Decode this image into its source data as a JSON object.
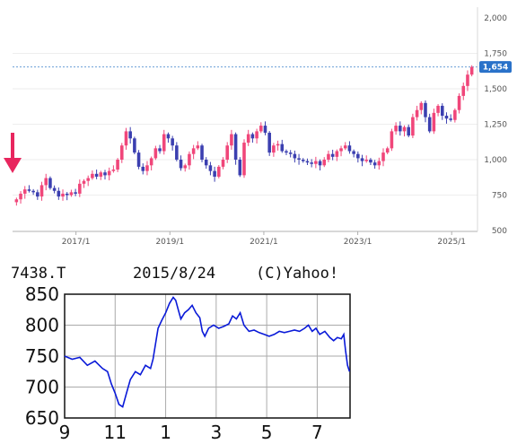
{
  "chart_data": [
    {
      "type": "candlestick",
      "y_axis_ticks": [
        "2,000",
        "1,750",
        "1,500",
        "1,250",
        "1,000",
        "750",
        "500"
      ],
      "y_ticks_values": [
        2000,
        1750,
        1500,
        1250,
        1000,
        750,
        500
      ],
      "ylim": [
        500,
        2000
      ],
      "x_axis_ticks": [
        "2017/1",
        "2019/1",
        "2021/1",
        "2023/1",
        "2025/1"
      ],
      "x_ticks_values": [
        2017.0,
        2019.0,
        2021.0,
        2023.0,
        2025.0
      ],
      "xlim": [
        2015.65,
        2025.55
      ],
      "current_price": "1,654",
      "current_price_value": 1654,
      "colors": {
        "up": "#f0467a",
        "down": "#3b3fb0",
        "price_tag": "#2a72c9",
        "price_line": "#6a9ed6",
        "arrow": "#e8265e",
        "axis": "#b0b0b0"
      },
      "series_close": [
        720,
        760,
        790,
        780,
        770,
        740,
        820,
        870,
        800,
        780,
        740,
        760,
        750,
        770,
        760,
        830,
        850,
        870,
        900,
        880,
        910,
        890,
        920,
        930,
        1000,
        1100,
        1200,
        1150,
        1050,
        950,
        920,
        960,
        1010,
        1080,
        1060,
        1180,
        1150,
        1100,
        1000,
        940,
        960,
        1040,
        1080,
        1100,
        1000,
        960,
        920,
        880,
        950,
        1000,
        1100,
        1180,
        1000,
        890,
        1120,
        1180,
        1150,
        1200,
        1240,
        1190,
        1050,
        1100,
        1110,
        1060,
        1050,
        1040,
        1010,
        1000,
        990,
        980,
        970,
        990,
        960,
        1000,
        1040,
        1020,
        1060,
        1080,
        1100,
        1060,
        1040,
        1010,
        990,
        1000,
        980,
        960,
        990,
        1050,
        1080,
        1200,
        1240,
        1200,
        1230,
        1170,
        1300,
        1350,
        1400,
        1300,
        1200,
        1330,
        1380,
        1310,
        1290,
        1280,
        1350,
        1450,
        1520,
        1600,
        1654
      ]
    },
    {
      "type": "line",
      "ticker": "7438.T",
      "date": "2015/8/24",
      "source": "(C)Yahoo!",
      "y_axis_ticks": [
        "850",
        "800",
        "750",
        "700",
        "650"
      ],
      "y_ticks_values": [
        850,
        800,
        750,
        700,
        650
      ],
      "ylim": [
        650,
        850
      ],
      "x_axis_ticks": [
        "9",
        "11",
        "1",
        "3",
        "5",
        "7"
      ],
      "x_ticks_values": [
        0,
        2,
        4,
        6,
        8,
        10
      ],
      "xlim": [
        0,
        11.3
      ],
      "colors": {
        "line": "#0a1ad8",
        "frame": "#111111",
        "grid": "#aaaaaa"
      },
      "series": [
        {
          "x": 0.0,
          "y": 750
        },
        {
          "x": 0.3,
          "y": 745
        },
        {
          "x": 0.6,
          "y": 748
        },
        {
          "x": 0.9,
          "y": 735
        },
        {
          "x": 1.2,
          "y": 742
        },
        {
          "x": 1.5,
          "y": 730
        },
        {
          "x": 1.7,
          "y": 725
        },
        {
          "x": 1.85,
          "y": 705
        },
        {
          "x": 2.0,
          "y": 690
        },
        {
          "x": 2.15,
          "y": 672
        },
        {
          "x": 2.3,
          "y": 668
        },
        {
          "x": 2.45,
          "y": 690
        },
        {
          "x": 2.6,
          "y": 712
        },
        {
          "x": 2.8,
          "y": 725
        },
        {
          "x": 3.0,
          "y": 720
        },
        {
          "x": 3.2,
          "y": 735
        },
        {
          "x": 3.4,
          "y": 730
        },
        {
          "x": 3.5,
          "y": 745
        },
        {
          "x": 3.6,
          "y": 770
        },
        {
          "x": 3.7,
          "y": 795
        },
        {
          "x": 3.85,
          "y": 808
        },
        {
          "x": 4.0,
          "y": 820
        },
        {
          "x": 4.15,
          "y": 835
        },
        {
          "x": 4.3,
          "y": 845
        },
        {
          "x": 4.4,
          "y": 840
        },
        {
          "x": 4.5,
          "y": 825
        },
        {
          "x": 4.6,
          "y": 810
        },
        {
          "x": 4.75,
          "y": 820
        },
        {
          "x": 4.9,
          "y": 825
        },
        {
          "x": 5.05,
          "y": 832
        },
        {
          "x": 5.2,
          "y": 820
        },
        {
          "x": 5.35,
          "y": 812
        },
        {
          "x": 5.45,
          "y": 790
        },
        {
          "x": 5.55,
          "y": 782
        },
        {
          "x": 5.7,
          "y": 795
        },
        {
          "x": 5.9,
          "y": 800
        },
        {
          "x": 6.1,
          "y": 795
        },
        {
          "x": 6.3,
          "y": 798
        },
        {
          "x": 6.5,
          "y": 802
        },
        {
          "x": 6.65,
          "y": 815
        },
        {
          "x": 6.8,
          "y": 810
        },
        {
          "x": 6.95,
          "y": 820
        },
        {
          "x": 7.1,
          "y": 800
        },
        {
          "x": 7.3,
          "y": 790
        },
        {
          "x": 7.5,
          "y": 792
        },
        {
          "x": 7.7,
          "y": 788
        },
        {
          "x": 7.9,
          "y": 785
        },
        {
          "x": 8.1,
          "y": 782
        },
        {
          "x": 8.3,
          "y": 785
        },
        {
          "x": 8.5,
          "y": 790
        },
        {
          "x": 8.7,
          "y": 788
        },
        {
          "x": 8.9,
          "y": 790
        },
        {
          "x": 9.1,
          "y": 792
        },
        {
          "x": 9.3,
          "y": 790
        },
        {
          "x": 9.5,
          "y": 795
        },
        {
          "x": 9.65,
          "y": 800
        },
        {
          "x": 9.8,
          "y": 790
        },
        {
          "x": 9.95,
          "y": 795
        },
        {
          "x": 10.1,
          "y": 785
        },
        {
          "x": 10.3,
          "y": 790
        },
        {
          "x": 10.5,
          "y": 780
        },
        {
          "x": 10.65,
          "y": 775
        },
        {
          "x": 10.8,
          "y": 780
        },
        {
          "x": 10.95,
          "y": 778
        },
        {
          "x": 11.05,
          "y": 785
        },
        {
          "x": 11.12,
          "y": 760
        },
        {
          "x": 11.2,
          "y": 735
        },
        {
          "x": 11.28,
          "y": 725
        }
      ]
    }
  ]
}
